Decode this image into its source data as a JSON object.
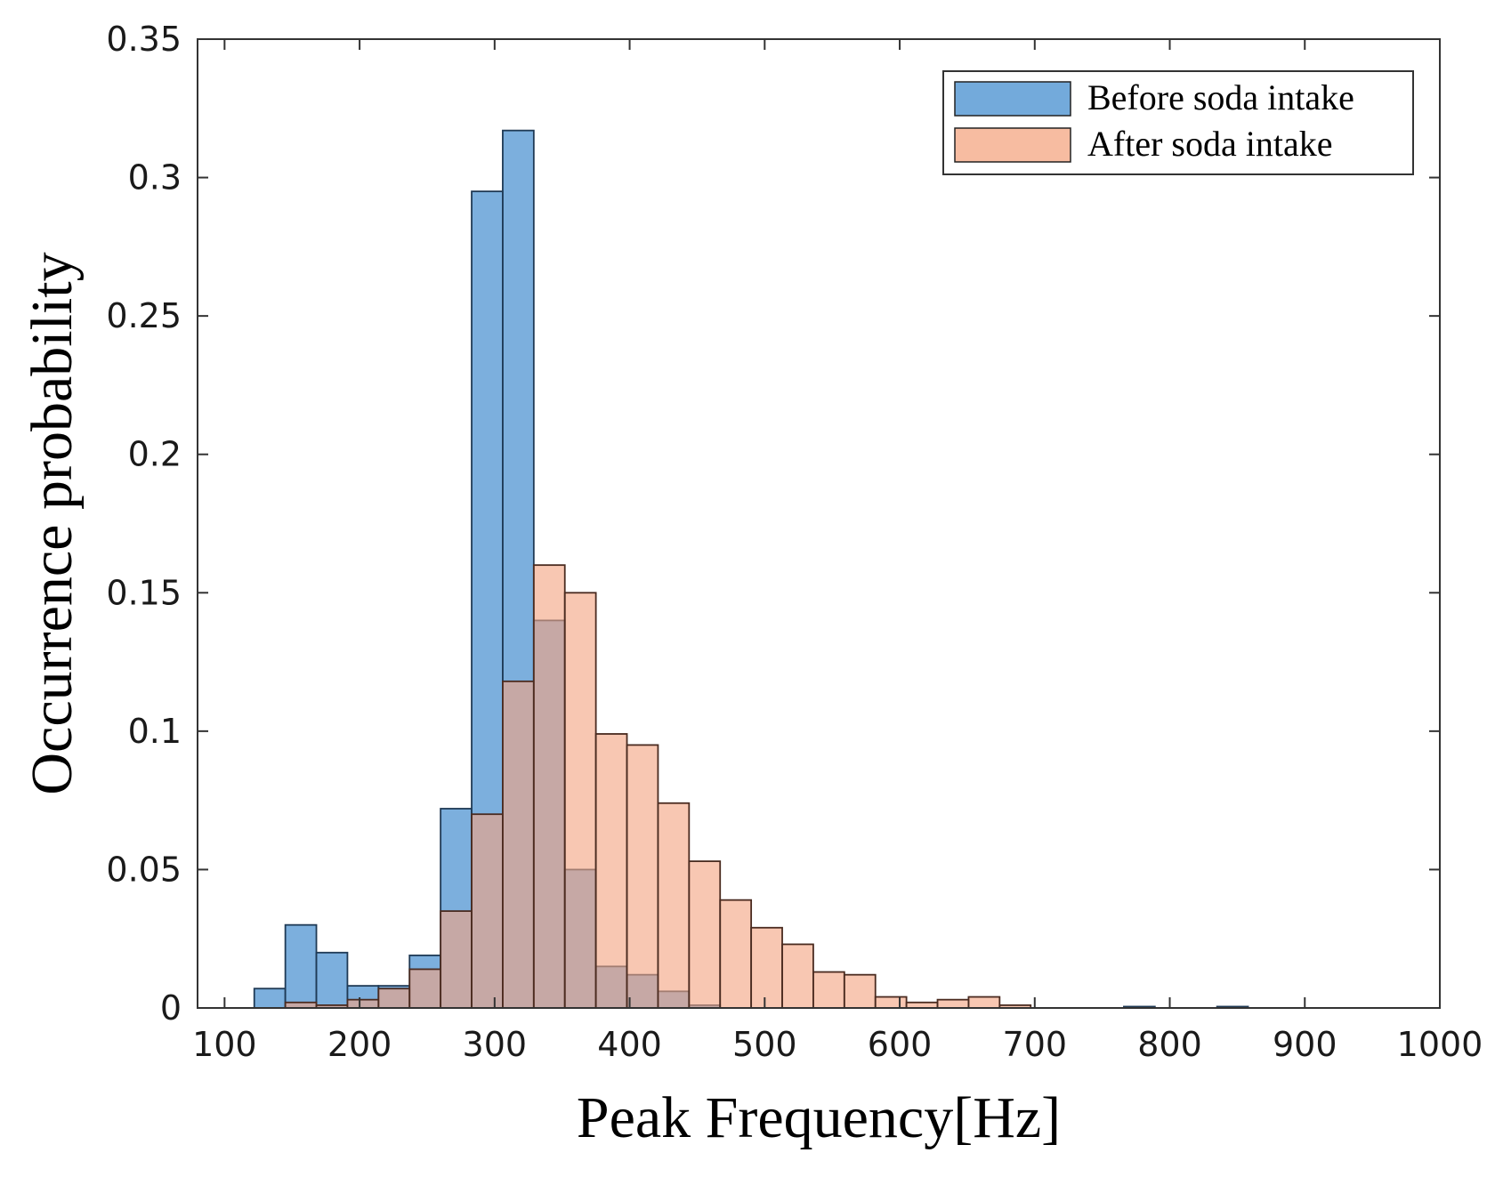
{
  "chart_data": {
    "type": "histogram",
    "title": "",
    "xlabel": "Peak Frequency[Hz]",
    "ylabel": "Occurrence probability",
    "xlim": [
      80,
      1000
    ],
    "ylim": [
      0,
      0.35
    ],
    "xticks": [
      100,
      200,
      300,
      400,
      500,
      600,
      700,
      800,
      900,
      1000
    ],
    "yticks": [
      0,
      0.05,
      0.1,
      0.15,
      0.2,
      0.25,
      0.3,
      0.35
    ],
    "xtick_labels": [
      "100",
      "200",
      "300",
      "400",
      "500",
      "600",
      "700",
      "800",
      "900",
      "1000"
    ],
    "ytick_labels": [
      "0",
      "0.05",
      "0.1",
      "0.15",
      "0.2",
      "0.25",
      "0.3",
      "0.35"
    ],
    "bin_width": 23,
    "grid": false,
    "legend_position": "top-right",
    "series": [
      {
        "name": "Before soda intake",
        "color": "#5B9BD5",
        "bin_starts": [
          122,
          145,
          168,
          191,
          214,
          237,
          260,
          283,
          306,
          329,
          352,
          375,
          398,
          421,
          444,
          467,
          490,
          513,
          536,
          559,
          582,
          605,
          628,
          651,
          674,
          697,
          720,
          743,
          766,
          789,
          812,
          835
        ],
        "values": [
          0.007,
          0.03,
          0.02,
          0.008,
          0.008,
          0.019,
          0.072,
          0.295,
          0.317,
          0.14,
          0.05,
          0.015,
          0.012,
          0.006,
          0.001,
          0,
          0,
          0,
          0,
          0,
          0,
          0,
          0,
          0,
          0,
          0,
          0,
          0,
          0.0005,
          0,
          0,
          0.0005
        ]
      },
      {
        "name": "After soda intake",
        "color": "#F4A582",
        "bin_starts": [
          122,
          145,
          168,
          191,
          214,
          237,
          260,
          283,
          306,
          329,
          352,
          375,
          398,
          421,
          444,
          467,
          490,
          513,
          536,
          559,
          582,
          605,
          628,
          651,
          674,
          697,
          720,
          743,
          766,
          789,
          812,
          835
        ],
        "values": [
          0,
          0.002,
          0.001,
          0.003,
          0.007,
          0.014,
          0.035,
          0.07,
          0.118,
          0.16,
          0.15,
          0.099,
          0.095,
          0.074,
          0.053,
          0.039,
          0.029,
          0.023,
          0.013,
          0.012,
          0.004,
          0.002,
          0.003,
          0.004,
          0.001,
          0,
          0,
          0,
          0,
          0,
          0,
          0
        ]
      }
    ]
  }
}
